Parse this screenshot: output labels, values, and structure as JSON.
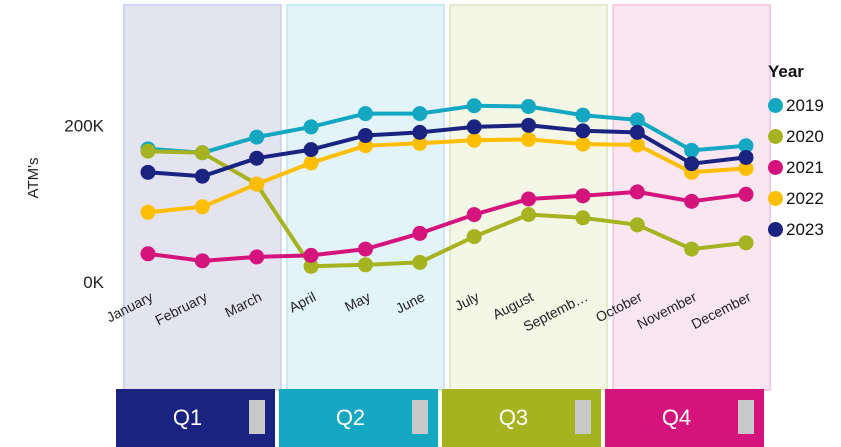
{
  "chart_data": {
    "type": "line",
    "title": "",
    "xlabel": "",
    "ylabel": "ATM's",
    "ylim": [
      0,
      360000
    ],
    "yticks": [
      {
        "value": 0,
        "label": "0K"
      },
      {
        "value": 200000,
        "label": "200K"
      }
    ],
    "categories": [
      "January",
      "February",
      "March",
      "April",
      "May",
      "June",
      "July",
      "August",
      "Septemb…",
      "October",
      "November",
      "December"
    ],
    "legend_title": "Year",
    "legend_position": "right",
    "series": [
      {
        "name": "2019",
        "color": "#14A7C1",
        "values": [
          170000,
          165000,
          185000,
          198000,
          215000,
          215000,
          225000,
          224000,
          213000,
          207000,
          168000,
          174000
        ]
      },
      {
        "name": "2020",
        "color": "#A6B321",
        "values": [
          167000,
          165000,
          125000,
          20000,
          22000,
          25000,
          58000,
          86000,
          82000,
          73000,
          42000,
          50000
        ]
      },
      {
        "name": "2021",
        "color": "#D4147C",
        "values": [
          36000,
          27000,
          32000,
          34000,
          42000,
          62000,
          86000,
          106000,
          110000,
          115000,
          103000,
          112000
        ]
      },
      {
        "name": "2022",
        "color": "#FFBE00",
        "values": [
          89000,
          96000,
          125000,
          152000,
          174000,
          177000,
          181000,
          182000,
          176000,
          175000,
          140000,
          145000
        ]
      },
      {
        "name": "2023",
        "color": "#1A2480",
        "values": [
          140000,
          135000,
          158000,
          169000,
          187000,
          191000,
          198000,
          200000,
          193000,
          191000,
          151000,
          159000
        ]
      }
    ]
  },
  "quarters": [
    {
      "label": "Q1",
      "color": "#1A2480",
      "band_color": "#E4E4F1",
      "band_border": "#C9CDEB"
    },
    {
      "label": "Q2",
      "color": "#14A7C1",
      "band_color": "#E2F4F9",
      "band_border": "#BFE3EF"
    },
    {
      "label": "Q3",
      "color": "#A6B321",
      "band_color": "#F4F6E6",
      "band_border": "#DCE3C0"
    },
    {
      "label": "Q4",
      "color": "#D4147C",
      "band_color": "#F9E6F1",
      "band_border": "#EEC3DB"
    }
  ]
}
